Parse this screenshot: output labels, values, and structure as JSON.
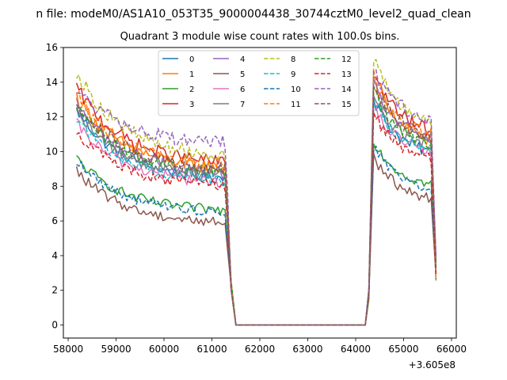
{
  "chart_data": {
    "type": "line",
    "suptitle": "n file: modeM0/AS1A10_053T35_9000004438_30744cztM0_level2_quad_clean",
    "title": "Quadrant 3 module wise count rates with 100.0s bins.",
    "xlabel": "",
    "ylabel": "",
    "x_offset_label": "+3.605e8",
    "xlim": [
      57900,
      66100
    ],
    "ylim": [
      -0.75,
      16.0
    ],
    "xticks": [
      58000,
      59000,
      60000,
      61000,
      62000,
      63000,
      64000,
      65000,
      66000
    ],
    "yticks": [
      0,
      2,
      4,
      6,
      8,
      10,
      12,
      14,
      16
    ],
    "legend_position": "upper center",
    "legend_columns": 4,
    "gap_start": 61500,
    "gap_end": 64200,
    "seg1": [
      58175,
      61275
    ],
    "seg2": [
      64375,
      65575
    ],
    "series": [
      {
        "name": "0",
        "color": "#1f77b4",
        "style": "solid",
        "seg1_start": 12.4,
        "seg1_end": 8.3,
        "seg2_start": 13.0,
        "seg2_end": 9.6,
        "jitter": 0.35
      },
      {
        "name": "1",
        "color": "#ff7f0e",
        "style": "solid",
        "seg1_start": 13.2,
        "seg1_end": 8.9,
        "seg2_start": 14.2,
        "seg2_end": 10.2,
        "jitter": 0.4
      },
      {
        "name": "2",
        "color": "#2ca02c",
        "style": "solid",
        "seg1_start": 9.6,
        "seg1_end": 6.5,
        "seg2_start": 10.6,
        "seg2_end": 7.8,
        "jitter": 0.3
      },
      {
        "name": "3",
        "color": "#d62728",
        "style": "solid",
        "seg1_start": 13.7,
        "seg1_end": 9.2,
        "seg2_start": 14.6,
        "seg2_end": 10.8,
        "jitter": 0.4
      },
      {
        "name": "4",
        "color": "#9467bd",
        "style": "solid",
        "seg1_start": 12.8,
        "seg1_end": 8.6,
        "seg2_start": 13.8,
        "seg2_end": 10.4,
        "jitter": 0.4
      },
      {
        "name": "5",
        "color": "#8c564b",
        "style": "solid",
        "seg1_start": 8.9,
        "seg1_end": 5.8,
        "seg2_start": 9.7,
        "seg2_end": 7.0,
        "jitter": 0.3
      },
      {
        "name": "6",
        "color": "#e377c2",
        "style": "solid",
        "seg1_start": 11.6,
        "seg1_end": 8.1,
        "seg2_start": 12.6,
        "seg2_end": 9.6,
        "jitter": 0.35
      },
      {
        "name": "7",
        "color": "#7f7f7f",
        "style": "solid",
        "seg1_start": 12.2,
        "seg1_end": 8.5,
        "seg2_start": 13.2,
        "seg2_end": 10.0,
        "jitter": 0.35
      },
      {
        "name": "8",
        "color": "#bcbd22",
        "style": "dashed",
        "seg1_start": 14.6,
        "seg1_end": 9.6,
        "seg2_start": 15.3,
        "seg2_end": 11.3,
        "jitter": 0.4
      },
      {
        "name": "9",
        "color": "#17becf",
        "style": "dashed",
        "seg1_start": 12.0,
        "seg1_end": 8.2,
        "seg2_start": 12.9,
        "seg2_end": 9.7,
        "jitter": 0.35
      },
      {
        "name": "10",
        "color": "#1f77b4",
        "style": "dashed",
        "seg1_start": 9.5,
        "seg1_end": 6.4,
        "seg2_start": 10.3,
        "seg2_end": 7.6,
        "jitter": 0.3
      },
      {
        "name": "11",
        "color": "#ff7f0e",
        "style": "dashed",
        "seg1_start": 13.3,
        "seg1_end": 9.0,
        "seg2_start": 14.4,
        "seg2_end": 10.6,
        "jitter": 0.4
      },
      {
        "name": "12",
        "color": "#2ca02c",
        "style": "dashed",
        "seg1_start": 12.6,
        "seg1_end": 8.7,
        "seg2_start": 13.5,
        "seg2_end": 10.1,
        "jitter": 0.35
      },
      {
        "name": "13",
        "color": "#d62728",
        "style": "dashed",
        "seg1_start": 11.2,
        "seg1_end": 7.9,
        "seg2_start": 12.2,
        "seg2_end": 9.3,
        "jitter": 0.35
      },
      {
        "name": "14",
        "color": "#9467bd",
        "style": "dashed",
        "seg1_start": 13.6,
        "seg1_end": 10.4,
        "seg2_start": 14.7,
        "seg2_end": 11.5,
        "jitter": 0.4
      },
      {
        "name": "15",
        "color": "#8c564b",
        "style": "dashed",
        "seg1_start": 12.9,
        "seg1_end": 8.8,
        "seg2_start": 13.9,
        "seg2_end": 10.5,
        "jitter": 0.4
      }
    ]
  }
}
